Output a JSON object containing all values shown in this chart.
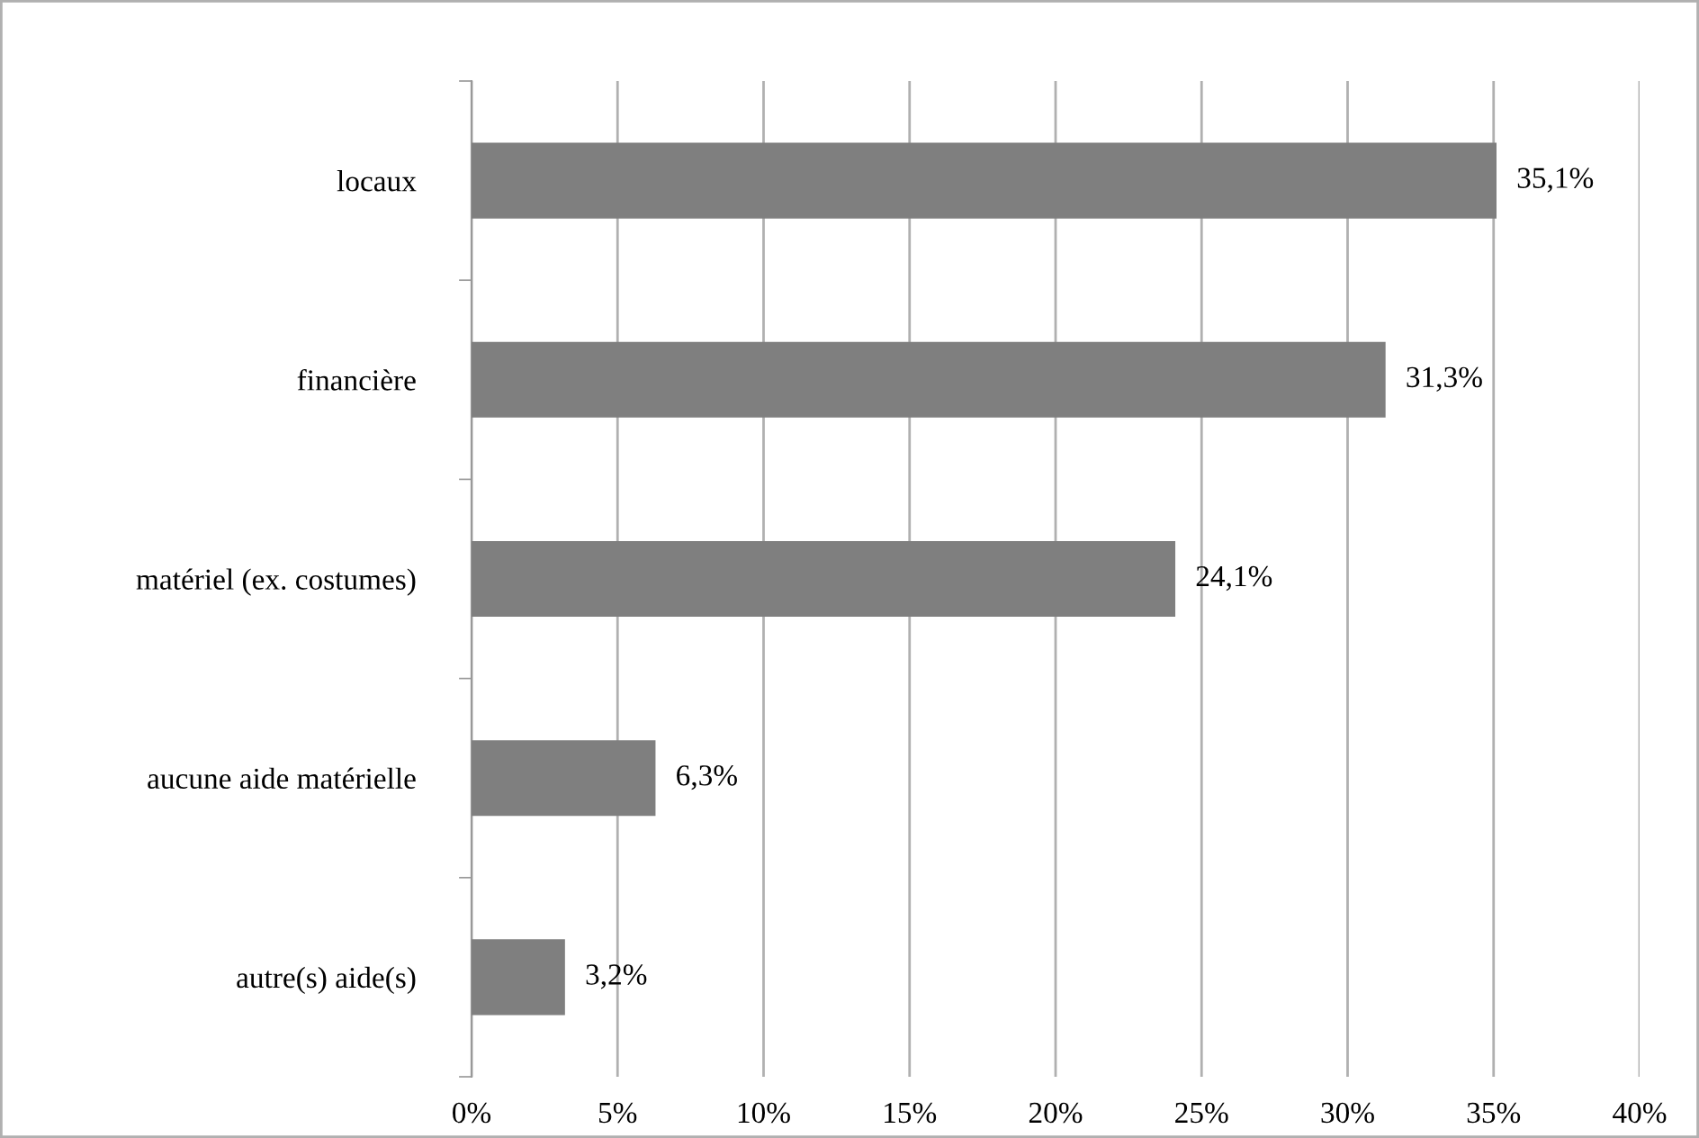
{
  "chart_data": {
    "type": "bar",
    "orientation": "horizontal",
    "categories": [
      "locaux",
      "financière",
      "matériel (ex. costumes)",
      "aucune aide matérielle",
      "autre(s) aide(s)"
    ],
    "values": [
      35.1,
      31.3,
      24.1,
      6.3,
      3.2
    ],
    "value_labels": [
      "35,1%",
      "31,3%",
      "24,1%",
      "6,3%",
      "3,2%"
    ],
    "color": "#7f7f7f",
    "xlim": [
      0,
      40
    ],
    "xticks": [
      {
        "value": 0,
        "label": "0%"
      },
      {
        "value": 5,
        "label": "5%"
      },
      {
        "value": 10,
        "label": "10%"
      },
      {
        "value": 15,
        "label": "15%"
      },
      {
        "value": 20,
        "label": "20%"
      },
      {
        "value": 25,
        "label": "25%"
      },
      {
        "value": 30,
        "label": "30%"
      },
      {
        "value": 35,
        "label": "35%"
      },
      {
        "value": 40,
        "label": "40%"
      }
    ],
    "grid": "x",
    "legend": false
  }
}
